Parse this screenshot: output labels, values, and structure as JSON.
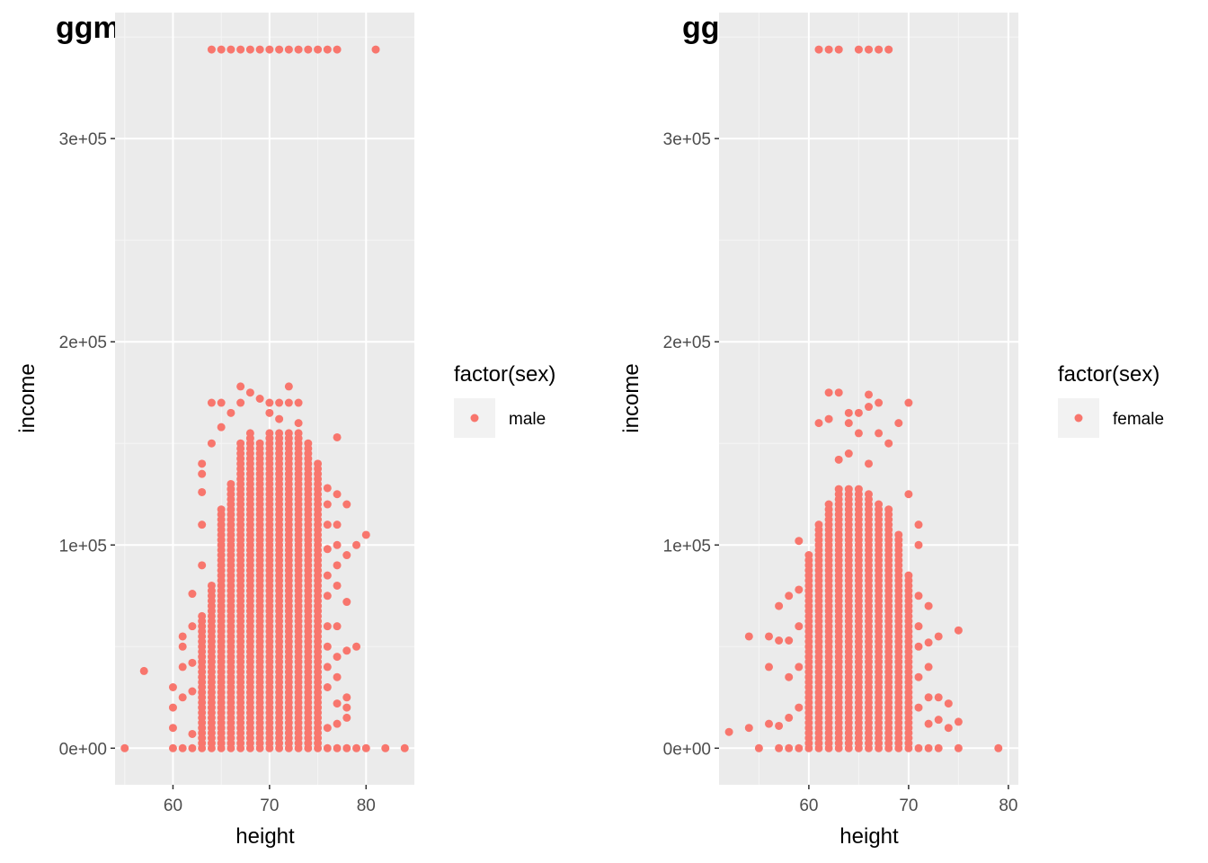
{
  "colors": {
    "panel": "#ebebeb",
    "grid_major": "#ffffff",
    "grid_minor": "#f5f5f5",
    "point": "#f8766d",
    "tick": "#4d4d4d",
    "legend_key": "#f2f2f2"
  },
  "chart_data": [
    {
      "type": "scatter",
      "title": "ggmen",
      "xlabel": "height",
      "ylabel": "income",
      "xlim": [
        54,
        85
      ],
      "ylim": [
        -18000,
        362000
      ],
      "xticks": [
        60,
        70,
        80
      ],
      "xtick_labels": [
        "60",
        "70",
        "80"
      ],
      "yticks": [
        0,
        100000,
        200000,
        300000
      ],
      "ytick_labels": [
        "0e+00",
        "1e+05",
        "2e+05",
        "3e+05"
      ],
      "legend": {
        "title": "factor(sex)",
        "entries": [
          {
            "label": "male",
            "color": "#f8766d"
          }
        ],
        "placement": "right"
      },
      "grid": true,
      "series": [
        {
          "name": "male",
          "color": "#f8766d",
          "outliers": [
            {
              "x": 64,
              "y": 343830
            },
            {
              "x": 65,
              "y": 343830
            },
            {
              "x": 66,
              "y": 343830
            },
            {
              "x": 67,
              "y": 343830
            },
            {
              "x": 68,
              "y": 343830
            },
            {
              "x": 69,
              "y": 343830
            },
            {
              "x": 70,
              "y": 343830
            },
            {
              "x": 71,
              "y": 343830
            },
            {
              "x": 72,
              "y": 343830
            },
            {
              "x": 73,
              "y": 343830
            },
            {
              "x": 74,
              "y": 343830
            },
            {
              "x": 75,
              "y": 343830
            },
            {
              "x": 76,
              "y": 343830
            },
            {
              "x": 77,
              "y": 343830
            },
            {
              "x": 81,
              "y": 343830
            }
          ],
          "points": [
            {
              "x": 55,
              "y": 0
            },
            {
              "x": 57,
              "y": 38000
            },
            {
              "x": 60,
              "y": 0
            },
            {
              "x": 60,
              "y": 10000
            },
            {
              "x": 60,
              "y": 20000
            },
            {
              "x": 60,
              "y": 30000
            },
            {
              "x": 61,
              "y": 0
            },
            {
              "x": 61,
              "y": 25000
            },
            {
              "x": 61,
              "y": 40000
            },
            {
              "x": 61,
              "y": 50000
            },
            {
              "x": 61,
              "y": 55000
            },
            {
              "x": 62,
              "y": 0
            },
            {
              "x": 62,
              "y": 7000
            },
            {
              "x": 62,
              "y": 28000
            },
            {
              "x": 62,
              "y": 42000
            },
            {
              "x": 62,
              "y": 60000
            },
            {
              "x": 62,
              "y": 76000
            },
            {
              "x": 82,
              "y": 0
            },
            {
              "x": 84,
              "y": 0
            },
            {
              "x": 79,
              "y": 0
            },
            {
              "x": 80,
              "y": 0
            },
            {
              "x": 80,
              "y": 105000
            },
            {
              "x": 79,
              "y": 100000
            },
            {
              "x": 79,
              "y": 50000
            },
            {
              "x": 78,
              "y": 0
            },
            {
              "x": 78,
              "y": 15000
            },
            {
              "x": 78,
              "y": 20000
            },
            {
              "x": 78,
              "y": 25000
            },
            {
              "x": 78,
              "y": 48000
            },
            {
              "x": 78,
              "y": 72000
            },
            {
              "x": 78,
              "y": 95000
            },
            {
              "x": 78,
              "y": 120000
            },
            {
              "x": 77,
              "y": 0
            },
            {
              "x": 77,
              "y": 12000
            },
            {
              "x": 77,
              "y": 22000
            },
            {
              "x": 77,
              "y": 35000
            },
            {
              "x": 77,
              "y": 45000
            },
            {
              "x": 77,
              "y": 60000
            },
            {
              "x": 77,
              "y": 80000
            },
            {
              "x": 77,
              "y": 90000
            },
            {
              "x": 77,
              "y": 100000
            },
            {
              "x": 77,
              "y": 110000
            },
            {
              "x": 77,
              "y": 125000
            },
            {
              "x": 77,
              "y": 153000
            },
            {
              "x": 76,
              "y": 0
            },
            {
              "x": 76,
              "y": 10000
            },
            {
              "x": 76,
              "y": 30000
            },
            {
              "x": 76,
              "y": 40000
            },
            {
              "x": 76,
              "y": 50000
            },
            {
              "x": 76,
              "y": 60000
            },
            {
              "x": 76,
              "y": 75000
            },
            {
              "x": 76,
              "y": 85000
            },
            {
              "x": 76,
              "y": 98000
            },
            {
              "x": 76,
              "y": 110000
            },
            {
              "x": 76,
              "y": 120000
            },
            {
              "x": 76,
              "y": 128000
            },
            {
              "x": 64,
              "y": 170000
            },
            {
              "x": 64,
              "y": 150000
            },
            {
              "x": 63,
              "y": 140000
            },
            {
              "x": 63,
              "y": 135000
            },
            {
              "x": 63,
              "y": 126000
            },
            {
              "x": 63,
              "y": 110000
            },
            {
              "x": 63,
              "y": 90000
            },
            {
              "x": 65,
              "y": 170000
            },
            {
              "x": 65,
              "y": 158000
            },
            {
              "x": 66,
              "y": 165000
            },
            {
              "x": 67,
              "y": 178000
            },
            {
              "x": 67,
              "y": 170000
            },
            {
              "x": 68,
              "y": 175000
            },
            {
              "x": 69,
              "y": 172000
            },
            {
              "x": 70,
              "y": 170000
            },
            {
              "x": 70,
              "y": 165000
            },
            {
              "x": 71,
              "y": 170000
            },
            {
              "x": 71,
              "y": 162000
            },
            {
              "x": 72,
              "y": 178000
            },
            {
              "x": 72,
              "y": 170000
            },
            {
              "x": 73,
              "y": 170000
            },
            {
              "x": 73,
              "y": 160000
            }
          ],
          "columns": [
            {
              "x": 63,
              "ymin": 0,
              "ymax": 65000
            },
            {
              "x": 64,
              "ymin": 0,
              "ymax": 82000
            },
            {
              "x": 65,
              "ymin": 0,
              "ymax": 118000
            },
            {
              "x": 66,
              "ymin": 0,
              "ymax": 130000
            },
            {
              "x": 67,
              "ymin": 0,
              "ymax": 150000
            },
            {
              "x": 68,
              "ymin": 0,
              "ymax": 155000
            },
            {
              "x": 69,
              "ymin": 0,
              "ymax": 150000
            },
            {
              "x": 70,
              "ymin": 0,
              "ymax": 155000
            },
            {
              "x": 71,
              "ymin": 0,
              "ymax": 155000
            },
            {
              "x": 72,
              "ymin": 0,
              "ymax": 155000
            },
            {
              "x": 73,
              "ymin": 0,
              "ymax": 155000
            },
            {
              "x": 74,
              "ymin": 0,
              "ymax": 150000
            },
            {
              "x": 75,
              "ymin": 0,
              "ymax": 140000
            }
          ]
        }
      ]
    },
    {
      "type": "scatter",
      "title": "ggwomen",
      "xlabel": "height",
      "ylabel": "income",
      "xlim": [
        51,
        81
      ],
      "ylim": [
        -18000,
        362000
      ],
      "xticks": [
        60,
        70,
        80
      ],
      "xtick_labels": [
        "60",
        "70",
        "80"
      ],
      "yticks": [
        0,
        100000,
        200000,
        300000
      ],
      "ytick_labels": [
        "0e+00",
        "1e+05",
        "2e+05",
        "3e+05"
      ],
      "legend": {
        "title": "factor(sex)",
        "entries": [
          {
            "label": "female",
            "color": "#f8766d"
          }
        ],
        "placement": "right"
      },
      "grid": true,
      "series": [
        {
          "name": "female",
          "color": "#f8766d",
          "outliers": [
            {
              "x": 61,
              "y": 343830
            },
            {
              "x": 62,
              "y": 343830
            },
            {
              "x": 63,
              "y": 343830
            },
            {
              "x": 65,
              "y": 343830
            },
            {
              "x": 66,
              "y": 343830
            },
            {
              "x": 67,
              "y": 343830
            },
            {
              "x": 68,
              "y": 343830
            }
          ],
          "points": [
            {
              "x": 52,
              "y": 8000
            },
            {
              "x": 54,
              "y": 55000
            },
            {
              "x": 54,
              "y": 10000
            },
            {
              "x": 55,
              "y": 0
            },
            {
              "x": 56,
              "y": 40000
            },
            {
              "x": 56,
              "y": 55000
            },
            {
              "x": 56,
              "y": 12000
            },
            {
              "x": 57,
              "y": 0
            },
            {
              "x": 57,
              "y": 53000
            },
            {
              "x": 57,
              "y": 70000
            },
            {
              "x": 57,
              "y": 11000
            },
            {
              "x": 58,
              "y": 0
            },
            {
              "x": 58,
              "y": 15000
            },
            {
              "x": 58,
              "y": 35000
            },
            {
              "x": 58,
              "y": 53000
            },
            {
              "x": 58,
              "y": 75000
            },
            {
              "x": 59,
              "y": 0
            },
            {
              "x": 59,
              "y": 20000
            },
            {
              "x": 59,
              "y": 40000
            },
            {
              "x": 59,
              "y": 60000
            },
            {
              "x": 59,
              "y": 78000
            },
            {
              "x": 59,
              "y": 102000
            },
            {
              "x": 79,
              "y": 0
            },
            {
              "x": 75,
              "y": 0
            },
            {
              "x": 75,
              "y": 13000
            },
            {
              "x": 75,
              "y": 58000
            },
            {
              "x": 74,
              "y": 10000
            },
            {
              "x": 74,
              "y": 22000
            },
            {
              "x": 73,
              "y": 0
            },
            {
              "x": 73,
              "y": 25000
            },
            {
              "x": 73,
              "y": 55000
            },
            {
              "x": 73,
              "y": 14000
            },
            {
              "x": 72,
              "y": 0
            },
            {
              "x": 72,
              "y": 12000
            },
            {
              "x": 72,
              "y": 25000
            },
            {
              "x": 72,
              "y": 40000
            },
            {
              "x": 72,
              "y": 52000
            },
            {
              "x": 72,
              "y": 70000
            },
            {
              "x": 71,
              "y": 0
            },
            {
              "x": 71,
              "y": 20000
            },
            {
              "x": 71,
              "y": 35000
            },
            {
              "x": 71,
              "y": 50000
            },
            {
              "x": 71,
              "y": 60000
            },
            {
              "x": 71,
              "y": 75000
            },
            {
              "x": 71,
              "y": 100000
            },
            {
              "x": 71,
              "y": 110000
            },
            {
              "x": 70,
              "y": 125000
            },
            {
              "x": 70,
              "y": 170000
            },
            {
              "x": 69,
              "y": 160000
            },
            {
              "x": 61,
              "y": 160000
            },
            {
              "x": 62,
              "y": 175000
            },
            {
              "x": 62,
              "y": 162000
            },
            {
              "x": 63,
              "y": 175000
            },
            {
              "x": 64,
              "y": 165000
            },
            {
              "x": 64,
              "y": 160000
            },
            {
              "x": 65,
              "y": 165000
            },
            {
              "x": 65,
              "y": 155000
            },
            {
              "x": 66,
              "y": 174000
            },
            {
              "x": 66,
              "y": 168000
            },
            {
              "x": 67,
              "y": 170000
            },
            {
              "x": 67,
              "y": 155000
            },
            {
              "x": 68,
              "y": 150000
            },
            {
              "x": 64,
              "y": 145000
            },
            {
              "x": 63,
              "y": 142000
            },
            {
              "x": 66,
              "y": 140000
            }
          ],
          "columns": [
            {
              "x": 60,
              "ymin": 0,
              "ymax": 95000
            },
            {
              "x": 61,
              "ymin": 0,
              "ymax": 112000
            },
            {
              "x": 62,
              "ymin": 0,
              "ymax": 120000
            },
            {
              "x": 63,
              "ymin": 0,
              "ymax": 128000
            },
            {
              "x": 64,
              "ymin": 0,
              "ymax": 128000
            },
            {
              "x": 65,
              "ymin": 0,
              "ymax": 128000
            },
            {
              "x": 66,
              "ymin": 0,
              "ymax": 125000
            },
            {
              "x": 67,
              "ymin": 0,
              "ymax": 120000
            },
            {
              "x": 68,
              "ymin": 0,
              "ymax": 118000
            },
            {
              "x": 69,
              "ymin": 0,
              "ymax": 105000
            },
            {
              "x": 70,
              "ymin": 0,
              "ymax": 85000
            }
          ]
        }
      ]
    }
  ]
}
